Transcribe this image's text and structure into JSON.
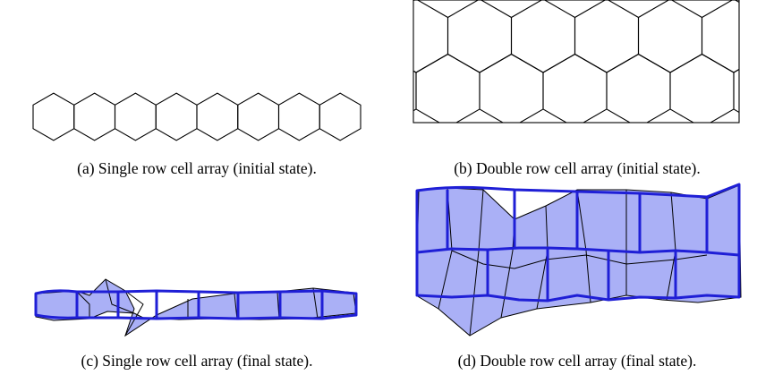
{
  "subfigures": [
    {
      "caption": "(a) Single row cell array (initial state)."
    },
    {
      "caption": "(b) Double row cell array (initial state)."
    },
    {
      "caption": "(c) Single row cell array (final state)."
    },
    {
      "caption": "(d) Double row cell array (final state)."
    }
  ]
}
